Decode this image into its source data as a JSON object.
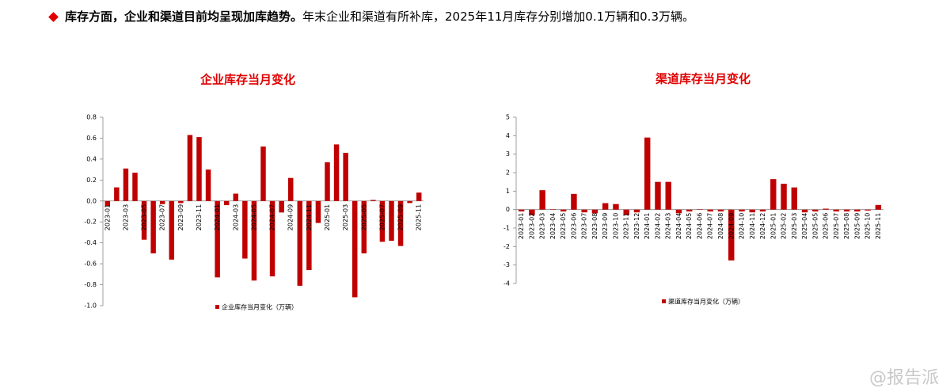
{
  "header": {
    "bold": "库存方面，企业和渠道目前均呈现加库趋势。",
    "text": "年末企业和渠道有所补库，2025年11月库存分别增加0.1万辆和0.3万辆。"
  },
  "watermark": "@报告派",
  "chart_data": [
    {
      "type": "bar",
      "title": "企业库存当月变化",
      "categories": [
        "2023-01",
        null,
        "2023-03",
        null,
        "2023-05",
        null,
        "2023-07",
        null,
        "2023-09",
        null,
        "2023-11",
        null,
        "2024-01",
        null,
        "2024-03",
        null,
        "2024-05",
        null,
        "2024-07",
        null,
        "2024-09",
        null,
        "2024-11",
        null,
        "2025-01",
        null,
        "2025-03",
        null,
        "2025-05",
        null,
        "2025-07",
        null,
        "2025-09",
        null,
        "2025-11"
      ],
      "series": [
        {
          "name": "企业库存当月变化（万辆）",
          "color": "#c00000",
          "values": [
            -0.05,
            0.13,
            0.31,
            0.27,
            -0.37,
            -0.5,
            -0.03,
            -0.56,
            -0.02,
            0.63,
            0.61,
            0.3,
            -0.73,
            -0.04,
            0.07,
            -0.55,
            -0.76,
            0.52,
            -0.72,
            -0.11,
            0.22,
            -0.81,
            -0.66,
            -0.21,
            0.37,
            0.54,
            0.46,
            -0.92,
            -0.5,
            0.01,
            -0.39,
            -0.38,
            -0.43,
            -0.02,
            0.08
          ]
        }
      ],
      "ylim": [
        -1,
        0.8
      ],
      "yticks": [
        {
          "value": -1,
          "label": "-1.0"
        },
        -0.8,
        -0.6,
        -0.4,
        -0.2,
        {
          "value": 0,
          "label": "0.0"
        },
        0.2,
        0.4,
        0.6,
        0.8
      ]
    },
    {
      "type": "bar",
      "title": "渠道库存当月变化",
      "categories": [
        "2023-01",
        "2023-02",
        "2023-03",
        "2023-04",
        "2023-05",
        "2023-06",
        "2023-07",
        "2023-08",
        "2023-09",
        "2023-10",
        "2023-11",
        "2023-12",
        "2024-01",
        "2024-02",
        "2024-03",
        "2024-04",
        "2024-05",
        "2024-06",
        "2024-07",
        "2024-08",
        "2024-09",
        "2024-10",
        "2024-11",
        "2024-12",
        "2025-01",
        "2025-02",
        "2025-03",
        "2025-04",
        "2025-05",
        "2025-06",
        "2025-07",
        "2025-08",
        "2025-09",
        "2025-10",
        "2025-11"
      ],
      "series": [
        {
          "name": "渠道库存当月变化（万辆）",
          "color": "#c00000",
          "values": [
            -0.1,
            -0.3,
            1.05,
            0.02,
            -0.1,
            0.85,
            -0.15,
            -0.2,
            0.35,
            0.3,
            -0.3,
            -0.15,
            3.9,
            1.5,
            1.5,
            -0.2,
            -0.1,
            0.02,
            -0.1,
            -0.1,
            -2.75,
            -0.1,
            -0.15,
            -0.1,
            1.65,
            1.4,
            1.2,
            -0.15,
            -0.1,
            0.05,
            -0.1,
            -0.1,
            -0.1,
            -0.05,
            0.25
          ]
        }
      ],
      "ylim": [
        -4,
        5
      ],
      "yticks": [
        -4,
        -3,
        -2,
        -1,
        0,
        1,
        2,
        3,
        4,
        5
      ]
    }
  ]
}
